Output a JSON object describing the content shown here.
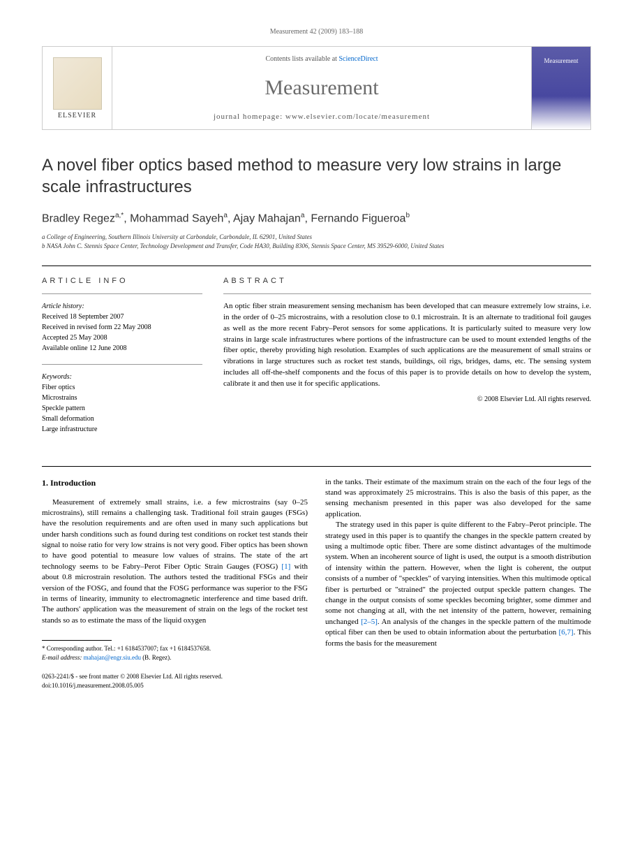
{
  "header": {
    "citation": "Measurement 42 (2009) 183–188"
  },
  "journal_box": {
    "publisher": "ELSEVIER",
    "contents_prefix": "Contents lists available at ",
    "contents_link": "ScienceDirect",
    "title": "Measurement",
    "homepage_label": "journal homepage: www.elsevier.com/locate/measurement",
    "cover_label": "Measurement"
  },
  "article": {
    "title": "A novel fiber optics based method to measure very low strains in large scale infrastructures",
    "authors_html": "Bradley Regez",
    "author1": "Bradley Regez",
    "author1_sup": "a,*",
    "author2": "Mohammad Sayeh",
    "author2_sup": "a",
    "author3": "Ajay Mahajan",
    "author3_sup": "a",
    "author4": "Fernando Figueroa",
    "author4_sup": "b",
    "affil_a": "a College of Engineering, Southern Illinois University at Carbondale, Carbondale, IL 62901, United States",
    "affil_b": "b NASA John C. Stennis Space Center, Technology Development and Transfer, Code HA30, Building 8306, Stennis Space Center, MS 39529-6000, United States"
  },
  "info": {
    "header": "ARTICLE INFO",
    "history_label": "Article history:",
    "received": "Received 18 September 2007",
    "revised": "Received in revised form 22 May 2008",
    "accepted": "Accepted 25 May 2008",
    "online": "Available online 12 June 2008",
    "keywords_label": "Keywords:",
    "kw1": "Fiber optics",
    "kw2": "Microstrains",
    "kw3": "Speckle pattern",
    "kw4": "Small deformation",
    "kw5": "Large infrastructure"
  },
  "abstract": {
    "header": "ABSTRACT",
    "text": "An optic fiber strain measurement sensing mechanism has been developed that can measure extremely low strains, i.e. in the order of 0–25 microstrains, with a resolution close to 0.1 microstrain. It is an alternate to traditional foil gauges as well as the more recent Fabry–Perot sensors for some applications. It is particularly suited to measure very low strains in large scale infrastructures where portions of the infrastructure can be used to mount extended lengths of the fiber optic, thereby providing high resolution. Examples of such applications are the measurement of small strains or vibrations in large structures such as rocket test stands, buildings, oil rigs, bridges, dams, etc. The sensing system includes all off-the-shelf components and the focus of this paper is to provide details on how to develop the system, calibrate it and then use it for specific applications.",
    "copyright": "© 2008 Elsevier Ltd. All rights reserved."
  },
  "body": {
    "section1_heading": "1. Introduction",
    "col1_p1a": "Measurement of extremely small strains, i.e. a few microstrains (say 0–25 microstrains), still remains a challenging task. Traditional foil strain gauges (FSGs) have the resolution requirements and are often used in many such applications but under harsh conditions such as found during test conditions on rocket test stands their signal to noise ratio for very low strains is not very good. Fiber optics has been shown to have good potential to measure low values of strains. The state of the art technology seems to be Fabry–Perot Fiber Optic Strain Gauges (FOSG) ",
    "col1_ref1": "[1]",
    "col1_p1b": " with about 0.8 microstrain resolution. The authors tested the traditional FSGs and their version of the FOSG, and found that the FOSG performance was superior to the FSG in terms of linearity, immunity to electromagnetic interference and time based drift. The authors' application was the measurement of strain on the legs of the rocket test stands so as to estimate the mass of the liquid oxygen",
    "col2_p1": "in the tanks. Their estimate of the maximum strain on the each of the four legs of the stand was approximately 25 microstrains. This is also the basis of this paper, as the sensing mechanism presented in this paper was also developed for the same application.",
    "col2_p2a": "The strategy used in this paper is quite different to the Fabry–Perot principle. The strategy used in this paper is to quantify the changes in the speckle pattern created by using a multimode optic fiber. There are some distinct advantages of the multimode system. When an incoherent source of light is used, the output is a smooth distribution of intensity within the pattern. However, when the light is coherent, the output consists of a number of \"speckles\" of varying intensities. When this multimode optical fiber is perturbed or \"strained\" the projected output speckle pattern changes. The change in the output consists of some speckles becoming brighter, some dimmer and some not changing at all, with the net intensity of the pattern, however, remaining unchanged ",
    "col2_ref25": "[2–5]",
    "col2_p2b": ". An analysis of the changes in the speckle pattern of the multimode optical fiber can then be used to obtain information about the perturbation ",
    "col2_ref67": "[6,7]",
    "col2_p2c": ". This forms the basis for the measurement"
  },
  "footnote": {
    "corr": "* Corresponding author. Tel.: +1 6184537007; fax +1 6184537658.",
    "email_label": "E-mail address: ",
    "email": "mahajan@engr.siu.edu",
    "email_suffix": " (B. Regez)."
  },
  "footer": {
    "copyright": "0263-2241/$ - see front matter © 2008 Elsevier Ltd. All rights reserved.",
    "doi": "doi:10.1016/j.measurement.2008.05.005"
  },
  "colors": {
    "link": "#0066cc",
    "text": "#000000",
    "gray_text": "#6b6b6b",
    "border": "#cccccc",
    "cover_top": "#5b5ba8"
  }
}
